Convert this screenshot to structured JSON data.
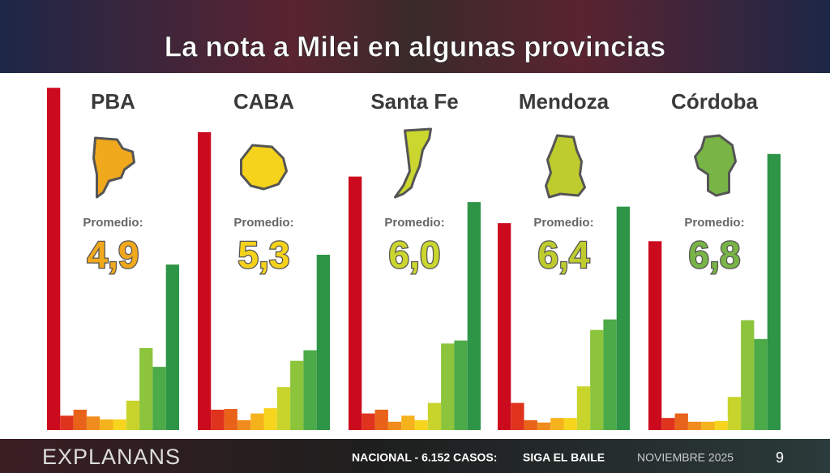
{
  "header": {
    "title": "La nota a Milei en algunas provincias"
  },
  "chart_data": [
    {
      "type": "bar",
      "title": "PBA",
      "annotation": "Promedio:",
      "average": "4,9",
      "color": "#f0a81c",
      "colors": [
        "#cc0a1e",
        "#e0331e",
        "#e8621a",
        "#f08c1e",
        "#f5b21c",
        "#f7d41e",
        "#c8d42c",
        "#8cc43c",
        "#4caa48",
        "#2e9446"
      ],
      "values": [
        45.5,
        1.9,
        2.7,
        1.8,
        1.4,
        1.4,
        3.9,
        10.9,
        8.4,
        22.0
      ]
    },
    {
      "type": "bar",
      "title": "CABA",
      "annotation": "Promedio:",
      "average": "5,3",
      "color": "#f5d21c",
      "colors": [
        "#cc0a1e",
        "#e0331e",
        "#e8621a",
        "#f08c1e",
        "#f5b21c",
        "#f7d41e",
        "#c8d42c",
        "#8cc43c",
        "#4caa48",
        "#2e9446"
      ],
      "values": [
        39.6,
        2.7,
        2.8,
        1.3,
        2.2,
        2.9,
        5.7,
        9.2,
        10.6,
        23.3
      ]
    },
    {
      "type": "bar",
      "title": "Santa Fe",
      "annotation": "Promedio:",
      "average": "6,0",
      "color": "#cbd62e",
      "colors": [
        "#cc0a1e",
        "#e0331e",
        "#e8621a",
        "#f08c1e",
        "#f5b21c",
        "#f7d41e",
        "#c8d42c",
        "#8cc43c",
        "#4caa48",
        "#2e9446"
      ],
      "values": [
        33.7,
        2.2,
        2.7,
        1.1,
        1.9,
        1.3,
        3.6,
        11.5,
        11.9,
        30.3
      ]
    },
    {
      "type": "bar",
      "title": "Mendoza",
      "annotation": "Promedio:",
      "average": "6,4",
      "color": "#bfcc2e",
      "colors": [
        "#cc0a1e",
        "#e0331e",
        "#e8621a",
        "#f08c1e",
        "#f5b21c",
        "#f7d41e",
        "#c8d42c",
        "#8cc43c",
        "#4caa48",
        "#2e9446"
      ],
      "values": [
        27.5,
        3.6,
        1.3,
        1.0,
        1.6,
        1.6,
        5.8,
        13.3,
        14.7,
        29.7
      ]
    },
    {
      "type": "bar",
      "title": "Córdoba",
      "annotation": "Promedio:",
      "average": "6,8",
      "color": "#78b446",
      "colors": [
        "#cc0a1e",
        "#e0331e",
        "#e8621a",
        "#f08c1e",
        "#f5b21c",
        "#f7d41e",
        "#c8d42c",
        "#8cc43c",
        "#4caa48",
        "#2e9446"
      ],
      "values": [
        25.1,
        1.6,
        2.2,
        1.1,
        1.1,
        1.2,
        4.4,
        14.6,
        12.1,
        36.7
      ]
    }
  ],
  "footer": {
    "brand": "EXPLANANS",
    "sample": "NACIONAL - 6.152 CASOS:",
    "survey": "SIGA EL BAILE",
    "date": "NOVIEMBRE 2025",
    "page": "9"
  }
}
